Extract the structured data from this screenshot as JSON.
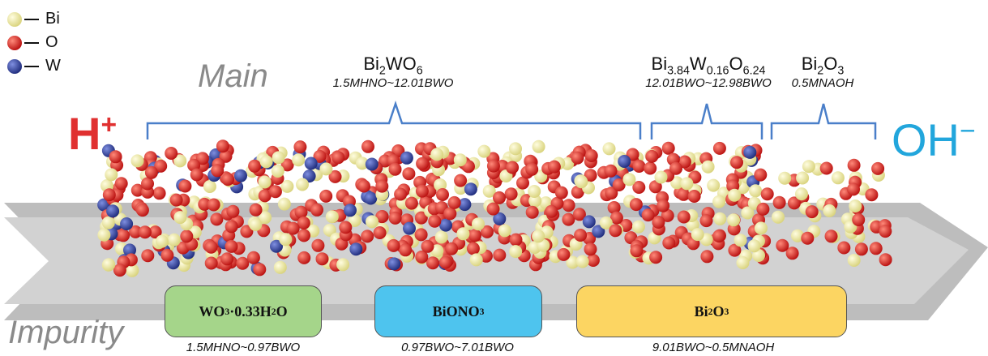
{
  "legend": [
    {
      "symbol": "Bi",
      "color": "#f3f09a"
    },
    {
      "symbol": "O",
      "color": "#e21b1b"
    },
    {
      "symbol": "W",
      "color": "#2d3fa0"
    }
  ],
  "sections": {
    "main": "Main",
    "impurity": "Impurity"
  },
  "ions": {
    "acid": "H",
    "acid_charge": "+",
    "base": "OH",
    "base_charge": "−"
  },
  "main_phases": [
    {
      "formula_main": "Bi",
      "formula_sub1": "2",
      "formula_mid": "WO",
      "formula_sub2": "6",
      "range": "1.5MHNO~12.01BWO"
    },
    {
      "b1": "Bi",
      "s1": "3.84",
      "b2": "W",
      "s2": "0.16",
      "b3": "O",
      "s3": "6.24",
      "range": "12.01BWO~12.98BWO"
    },
    {
      "formula_main": "Bi",
      "formula_sub1": "2",
      "formula_mid": "O",
      "formula_sub2": "3",
      "range": "0.5MNAOH"
    }
  ],
  "impurity_phases": [
    {
      "f1": "WO",
      "s1": "3",
      "f2": "·0.33H",
      "s2": "2",
      "f3": "O",
      "range": "1.5MHNO~0.97BWO",
      "color": "#a5d58a"
    },
    {
      "f1": "BiONO",
      "s1": "3",
      "range": "0.97BWO~7.01BWO",
      "color": "#4ec4ee"
    },
    {
      "f1": "Bi",
      "s1": "2",
      "f2": "O",
      "s2": "3",
      "range": "9.01BWO~0.5MNAOH",
      "color": "#fcd562"
    }
  ]
}
